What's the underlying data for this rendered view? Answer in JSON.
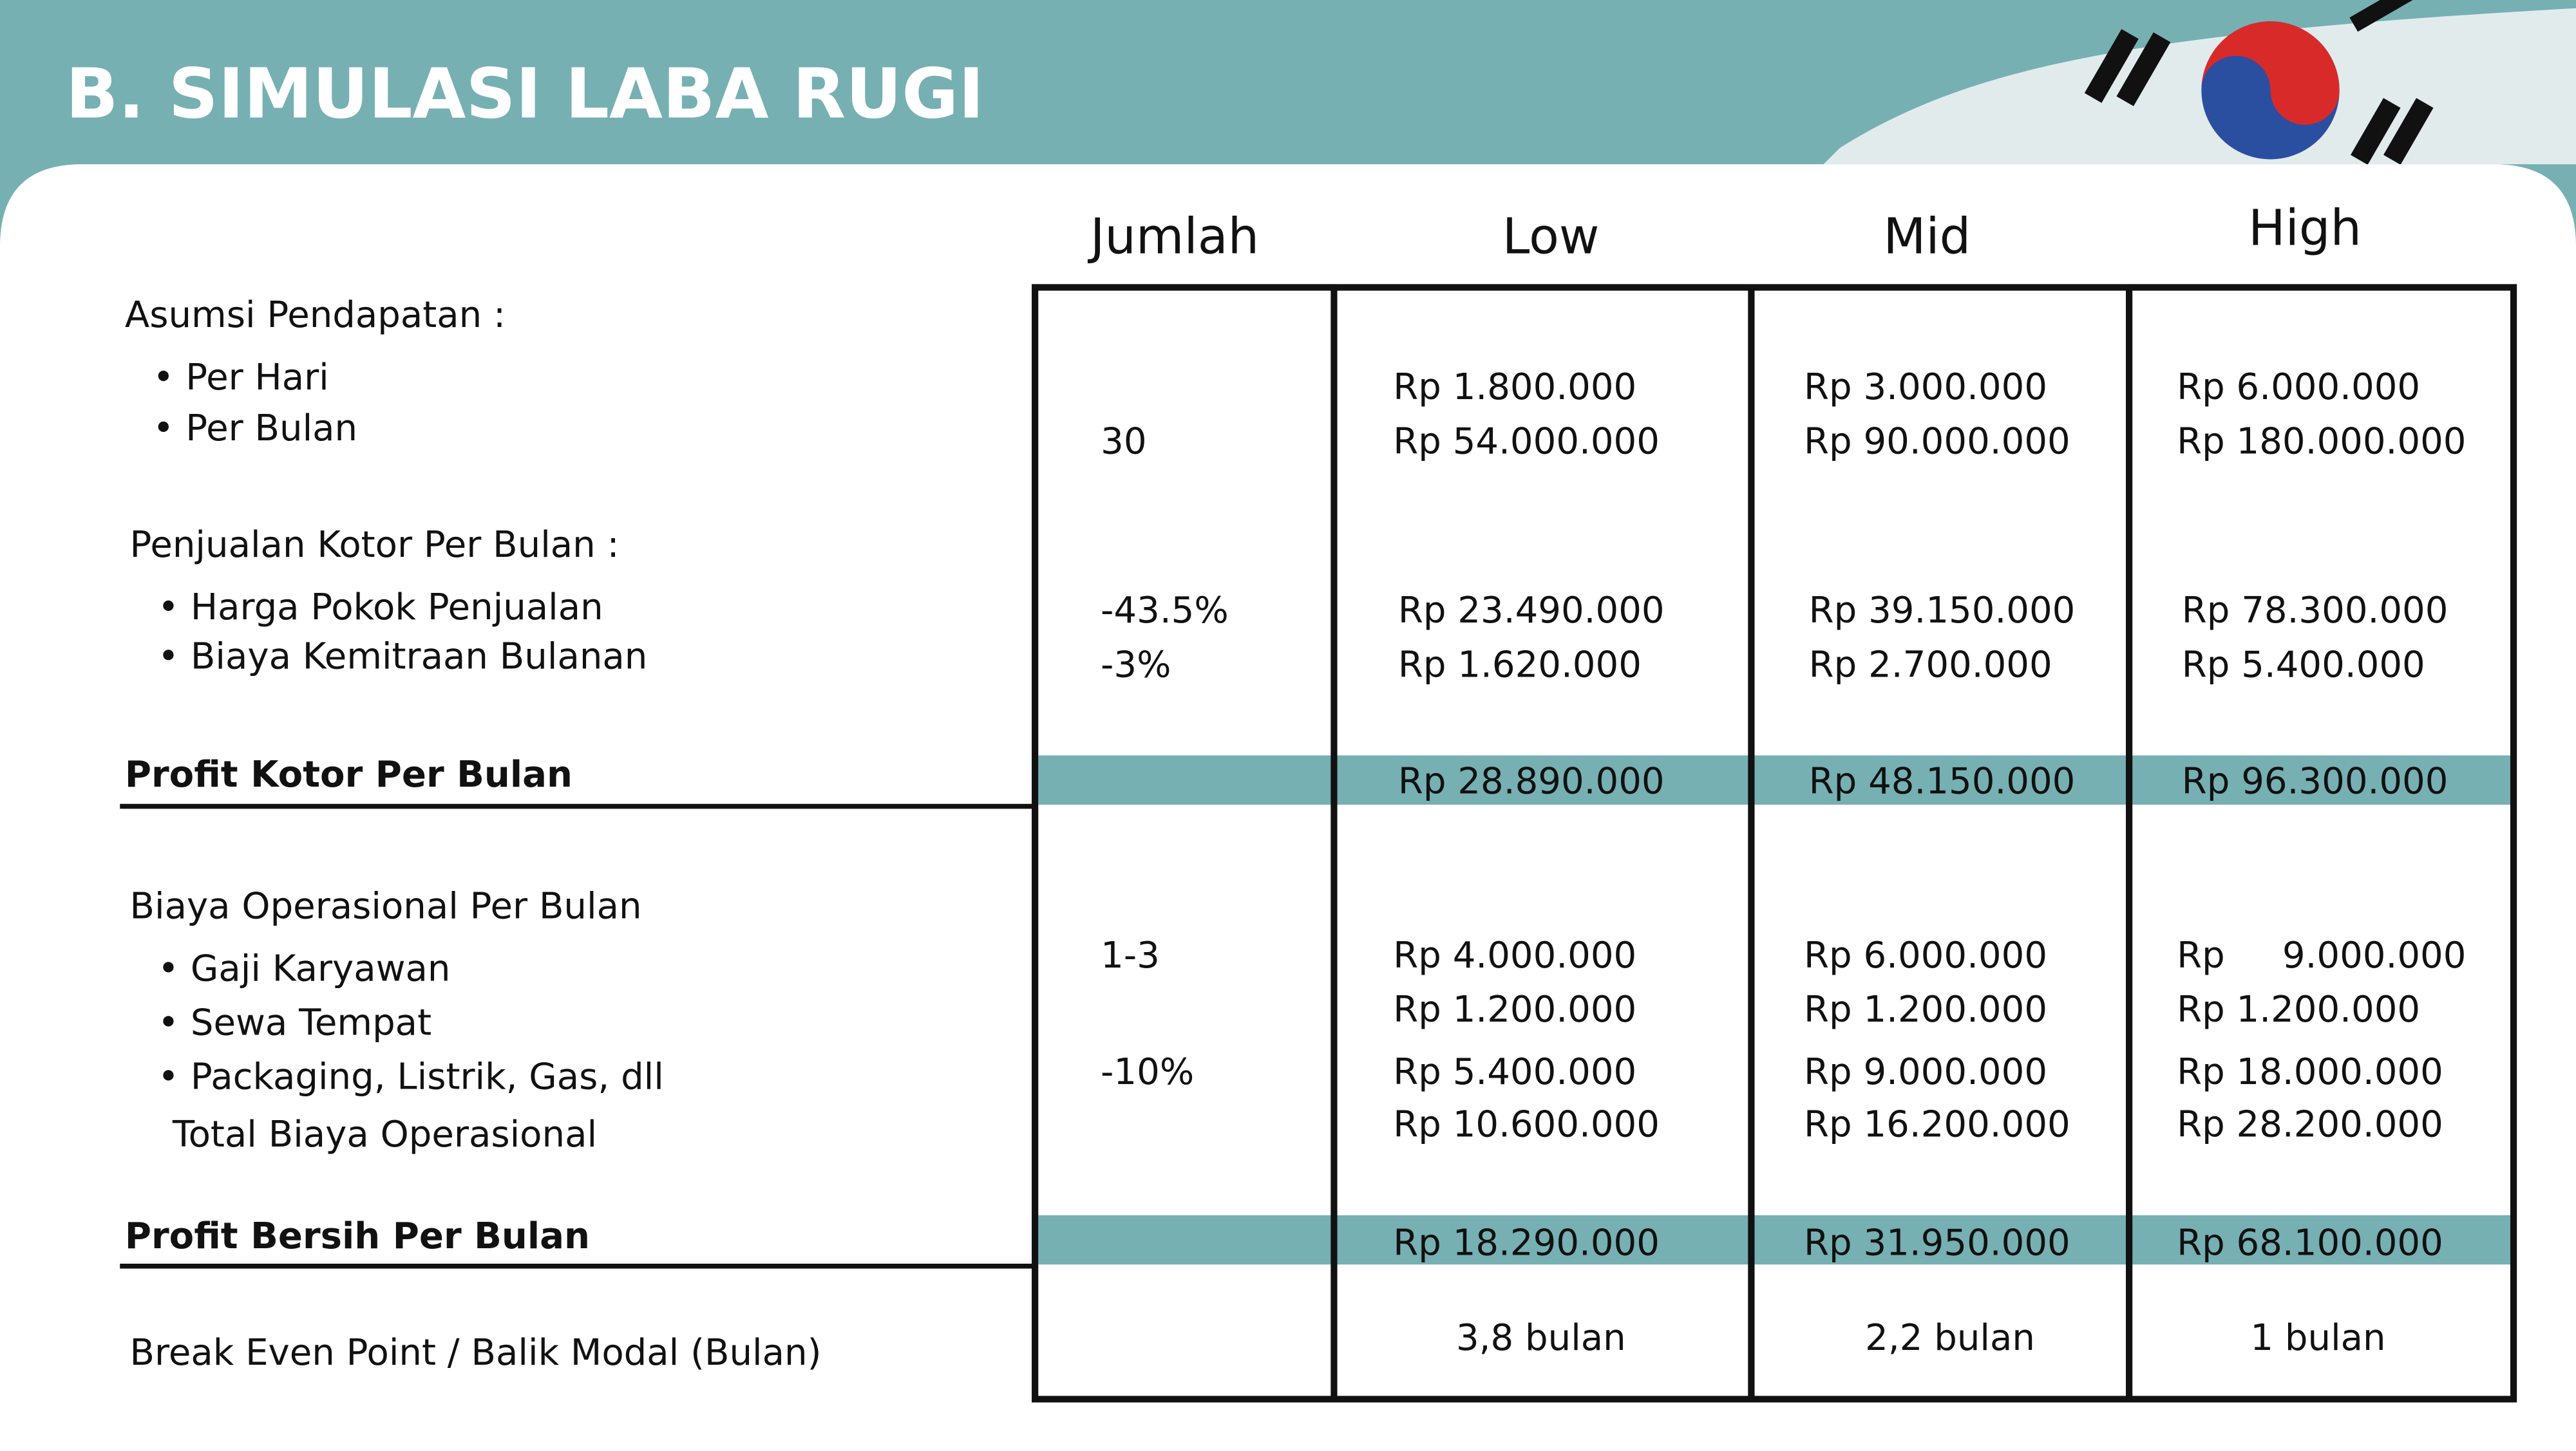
{
  "header": {
    "title": "B. SIMULASI LABA RUGI"
  },
  "table": {
    "columns": [
      "Jumlah",
      "Low",
      "Mid",
      "High"
    ],
    "rows": [
      {
        "label": "Asumsi Pendapatan :",
        "cells": [
          null,
          null,
          null,
          null
        ]
      },
      {
        "label": "Per Hari",
        "cells": [
          null,
          "Rp 1.800.000",
          "Rp 3.000.000",
          "Rp 6.000.000"
        ]
      },
      {
        "label": "Per Bulan",
        "cells": [
          "30",
          "Rp 54.000.000",
          "Rp 90.000.000",
          "Rp 180.000.000"
        ]
      },
      {
        "label": "Penjualan Kotor Per Bulan :",
        "cells": [
          null,
          null,
          null,
          null
        ]
      },
      {
        "label": "Harga Pokok Penjualan",
        "cells": [
          "-43.5%",
          "Rp 23.490.000",
          "Rp 39.150.000",
          "Rp 78.300.000"
        ]
      },
      {
        "label": "Biaya Kemitraan Bulanan",
        "cells": [
          "-3%",
          "Rp 1.620.000",
          "Rp 2.700.000",
          "Rp 5.400.000"
        ]
      },
      {
        "label": "Profit Kotor Per Bulan",
        "cells": [
          null,
          "Rp 28.890.000",
          "Rp 48.150.000",
          "Rp 96.300.000"
        ]
      },
      {
        "label": "Biaya Operasional Per Bulan",
        "cells": [
          null,
          null,
          null,
          null
        ]
      },
      {
        "label": "Gaji Karyawan",
        "cells": [
          "1-3",
          "Rp 4.000.000",
          "Rp 6.000.000",
          "Rp     9.000.000"
        ]
      },
      {
        "label": "Sewa Tempat",
        "cells": [
          null,
          "Rp 1.200.000",
          "Rp 1.200.000",
          "Rp 1.200.000"
        ]
      },
      {
        "label": "Packaging, Listrik, Gas, dll",
        "cells": [
          "-10%",
          "Rp 5.400.000",
          "Rp 9.000.000",
          "Rp 18.000.000"
        ]
      },
      {
        "label": "Total Biaya Operasional",
        "cells": [
          null,
          "Rp 10.600.000",
          "Rp 16.200.000",
          "Rp 28.200.000"
        ]
      },
      {
        "label": "Profit Bersih Per Bulan",
        "cells": [
          null,
          "Rp 18.290.000",
          "Rp 31.950.000",
          "Rp 68.100.000"
        ]
      },
      {
        "label": "Break Even Point / Balik Modal (Bulan)",
        "cells": [
          null,
          "3,8 bulan",
          "2,2 bulan",
          "1 bulan"
        ]
      }
    ]
  }
}
